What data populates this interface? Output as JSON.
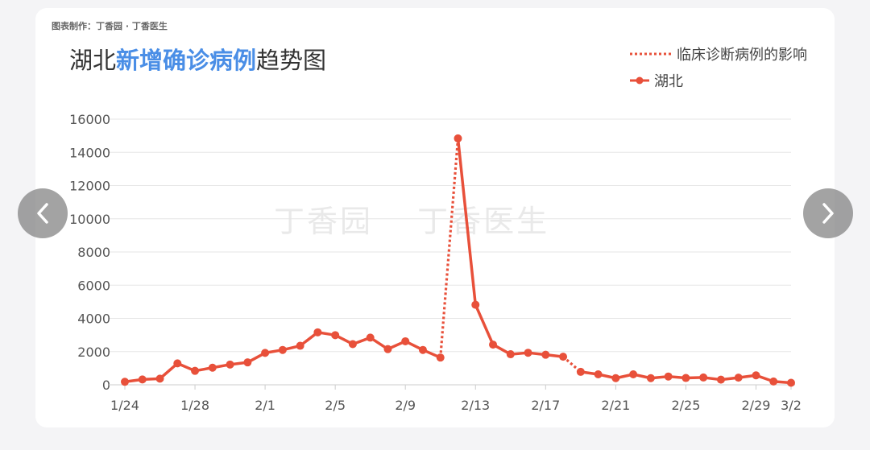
{
  "credit": "图表制作：丁香园 · 丁香医生",
  "title": {
    "part1": "湖北",
    "part2": "新增确诊病例",
    "part3": "趋势图"
  },
  "watermark": {
    "text1": "丁香园",
    "text2": "丁香医生"
  },
  "colors": {
    "series": "#e8503a",
    "title_highlight": "#4a8ee6",
    "grid": "#e6e6e6"
  },
  "nav": {
    "prev_icon": "chevron-left-icon",
    "next_icon": "chevron-right-icon"
  },
  "chart_data": {
    "type": "line",
    "title": "湖北新增确诊病例趋势图",
    "xlabel": "",
    "ylabel": "",
    "ylim": [
      0,
      16000
    ],
    "yticks": [
      0,
      2000,
      4000,
      6000,
      8000,
      10000,
      12000,
      14000,
      16000
    ],
    "grid": true,
    "legend": "top-right",
    "legend_entries": [
      "临床诊断病例的影响",
      "湖北"
    ],
    "xticks": [
      "1/24",
      "1/28",
      "2/1",
      "2/5",
      "2/9",
      "2/13",
      "2/17",
      "2/21",
      "2/25",
      "2/29",
      "3/2"
    ],
    "x": [
      "1/24",
      "1/25",
      "1/26",
      "1/27",
      "1/28",
      "1/29",
      "1/30",
      "1/31",
      "2/1",
      "2/2",
      "2/3",
      "2/4",
      "2/5",
      "2/6",
      "2/7",
      "2/8",
      "2/9",
      "2/10",
      "2/11",
      "2/12",
      "2/13",
      "2/14",
      "2/15",
      "2/16",
      "2/17",
      "2/18",
      "2/19",
      "2/20",
      "2/21",
      "2/22",
      "2/23",
      "2/24",
      "2/25",
      "2/26",
      "2/27",
      "2/28",
      "2/29",
      "3/1",
      "3/2"
    ],
    "series": [
      {
        "name": "湖北",
        "values": [
          180,
          320,
          370,
          1290,
          840,
          1030,
          1220,
          1350,
          1920,
          2100,
          2350,
          3160,
          2990,
          2450,
          2840,
          2150,
          2620,
          2100,
          1640,
          14840,
          4820,
          2420,
          1840,
          1930,
          1810,
          1690,
          780,
          630,
          400,
          630,
          400,
          500,
          410,
          440,
          310,
          430,
          570,
          200,
          120
        ],
        "dotted_segments": [
          [
            18,
            19
          ],
          [
            25,
            26
          ]
        ]
      }
    ]
  }
}
